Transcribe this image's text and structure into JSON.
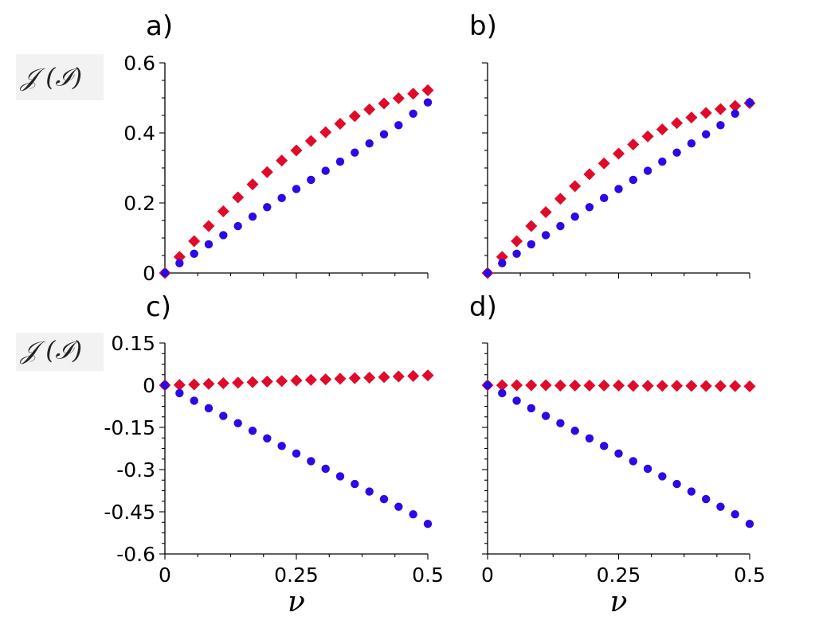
{
  "figure": {
    "x_axis_label": "ν",
    "y_axis_label": "𝒥 (ℐ)"
  },
  "colors": {
    "red_series": "#e00a2a",
    "blue_series": "#2a0ae6"
  },
  "chart_data": [
    {
      "panel": "a)",
      "type": "scatter",
      "xlim": [
        0,
        0.5
      ],
      "ylim": [
        0,
        0.6
      ],
      "xticks": [
        0,
        0.25,
        0.5
      ],
      "xtick_labels": [
        "",
        "",
        ""
      ],
      "yticks": [
        0,
        0.2,
        0.4,
        0.6
      ],
      "ytick_labels": [
        "0",
        "0.2",
        "0.4",
        "0.6"
      ],
      "ylabel": "𝒥 (ℐ)",
      "xlabel": "",
      "series": [
        {
          "name": "diamond",
          "marker": "diamond",
          "color": "#e00a2a",
          "x": [
            0,
            0.0278,
            0.0556,
            0.0833,
            0.1111,
            0.1389,
            0.1667,
            0.1944,
            0.2222,
            0.25,
            0.2778,
            0.3056,
            0.3333,
            0.3611,
            0.3889,
            0.4167,
            0.4444,
            0.4722,
            0.5
          ],
          "y": [
            0,
            0.046,
            0.091,
            0.134,
            0.176,
            0.216,
            0.253,
            0.288,
            0.321,
            0.35,
            0.377,
            0.402,
            0.426,
            0.448,
            0.467,
            0.484,
            0.499,
            0.512,
            0.522
          ]
        },
        {
          "name": "circle",
          "marker": "circle",
          "color": "#2a0ae6",
          "x": [
            0,
            0.0278,
            0.0556,
            0.0833,
            0.1111,
            0.1389,
            0.1667,
            0.1944,
            0.2222,
            0.25,
            0.2778,
            0.3056,
            0.3333,
            0.3611,
            0.3889,
            0.4167,
            0.4444,
            0.4722,
            0.5
          ],
          "y": [
            0,
            0.028,
            0.055,
            0.082,
            0.108,
            0.134,
            0.161,
            0.188,
            0.214,
            0.24,
            0.266,
            0.292,
            0.318,
            0.344,
            0.37,
            0.396,
            0.422,
            0.455,
            0.487
          ]
        }
      ]
    },
    {
      "panel": "b)",
      "type": "scatter",
      "xlim": [
        0,
        0.5
      ],
      "ylim": [
        0,
        0.6
      ],
      "xticks": [
        0,
        0.25,
        0.5
      ],
      "xtick_labels": [
        "",
        "",
        ""
      ],
      "yticks": [
        0,
        0.2,
        0.4,
        0.6
      ],
      "ytick_labels": [
        "",
        "",
        "",
        ""
      ],
      "ylabel": "",
      "xlabel": "",
      "series": [
        {
          "name": "diamond",
          "marker": "diamond",
          "color": "#e00a2a",
          "x": [
            0,
            0.0278,
            0.0556,
            0.0833,
            0.1111,
            0.1389,
            0.1667,
            0.1944,
            0.2222,
            0.25,
            0.2778,
            0.3056,
            0.3333,
            0.3611,
            0.3889,
            0.4167,
            0.4444,
            0.4722,
            0.5
          ],
          "y": [
            0,
            0.046,
            0.091,
            0.134,
            0.174,
            0.212,
            0.248,
            0.282,
            0.313,
            0.341,
            0.367,
            0.39,
            0.41,
            0.428,
            0.444,
            0.457,
            0.468,
            0.477,
            0.485
          ]
        },
        {
          "name": "circle",
          "marker": "circle",
          "color": "#2a0ae6",
          "x": [
            0,
            0.0278,
            0.0556,
            0.0833,
            0.1111,
            0.1389,
            0.1667,
            0.1944,
            0.2222,
            0.25,
            0.2778,
            0.3056,
            0.3333,
            0.3611,
            0.3889,
            0.4167,
            0.4444,
            0.4722,
            0.5
          ],
          "y": [
            0,
            0.028,
            0.055,
            0.082,
            0.108,
            0.134,
            0.161,
            0.188,
            0.214,
            0.24,
            0.266,
            0.292,
            0.318,
            0.344,
            0.37,
            0.396,
            0.422,
            0.455,
            0.487
          ]
        }
      ]
    },
    {
      "panel": "c)",
      "type": "scatter",
      "xlim": [
        0,
        0.5
      ],
      "ylim": [
        -0.6,
        0.15
      ],
      "xticks": [
        0,
        0.25,
        0.5
      ],
      "xtick_labels": [
        "0",
        "0.25",
        "0.5"
      ],
      "yticks": [
        0.15,
        0,
        -0.15,
        -0.3,
        -0.45,
        -0.6
      ],
      "ytick_labels": [
        "0.15",
        "0",
        "-0.15",
        "-0.3",
        "-0.45",
        "-0.6"
      ],
      "ylabel": "𝒥 (ℐ)",
      "xlabel": "ν",
      "series": [
        {
          "name": "diamond",
          "marker": "diamond",
          "color": "#e00a2a",
          "x": [
            0,
            0.0278,
            0.0556,
            0.0833,
            0.1111,
            0.1389,
            0.1667,
            0.1944,
            0.2222,
            0.25,
            0.2778,
            0.3056,
            0.3333,
            0.3611,
            0.3889,
            0.4167,
            0.4444,
            0.4722,
            0.5
          ],
          "y": [
            0,
            0.001,
            0.003,
            0.005,
            0.007,
            0.009,
            0.011,
            0.013,
            0.015,
            0.017,
            0.019,
            0.021,
            0.023,
            0.025,
            0.027,
            0.029,
            0.031,
            0.033,
            0.035
          ]
        },
        {
          "name": "circle",
          "marker": "circle",
          "color": "#2a0ae6",
          "x": [
            0,
            0.0278,
            0.0556,
            0.0833,
            0.1111,
            0.1389,
            0.1667,
            0.1944,
            0.2222,
            0.25,
            0.2778,
            0.3056,
            0.3333,
            0.3611,
            0.3889,
            0.4167,
            0.4444,
            0.4722,
            0.5
          ],
          "y": [
            0,
            -0.028,
            -0.055,
            -0.082,
            -0.109,
            -0.135,
            -0.162,
            -0.189,
            -0.216,
            -0.243,
            -0.27,
            -0.297,
            -0.324,
            -0.351,
            -0.378,
            -0.405,
            -0.432,
            -0.459,
            -0.493
          ]
        }
      ]
    },
    {
      "panel": "d)",
      "type": "scatter",
      "xlim": [
        0,
        0.5
      ],
      "ylim": [
        -0.6,
        0.15
      ],
      "xticks": [
        0,
        0.25,
        0.5
      ],
      "xtick_labels": [
        "0",
        "0.25",
        "0.5"
      ],
      "yticks": [
        0.15,
        0,
        -0.15,
        -0.3,
        -0.45,
        -0.6
      ],
      "ytick_labels": [
        "",
        "",
        "",
        "",
        "",
        ""
      ],
      "ylabel": "",
      "xlabel": "ν",
      "series": [
        {
          "name": "diamond",
          "marker": "diamond",
          "color": "#e00a2a",
          "x": [
            0,
            0.0278,
            0.0556,
            0.0833,
            0.1111,
            0.1389,
            0.1667,
            0.1944,
            0.2222,
            0.25,
            0.2778,
            0.3056,
            0.3333,
            0.3611,
            0.3889,
            0.4167,
            0.4444,
            0.4722,
            0.5
          ],
          "y": [
            0,
            0.0,
            0.0,
            0.0,
            0.0,
            -0.001,
            -0.001,
            -0.001,
            -0.001,
            -0.001,
            -0.002,
            -0.002,
            -0.002,
            -0.002,
            -0.002,
            -0.003,
            -0.003,
            -0.003,
            -0.004
          ]
        },
        {
          "name": "circle",
          "marker": "circle",
          "color": "#2a0ae6",
          "x": [
            0,
            0.0278,
            0.0556,
            0.0833,
            0.1111,
            0.1389,
            0.1667,
            0.1944,
            0.2222,
            0.25,
            0.2778,
            0.3056,
            0.3333,
            0.3611,
            0.3889,
            0.4167,
            0.4444,
            0.4722,
            0.5
          ],
          "y": [
            0,
            -0.028,
            -0.055,
            -0.082,
            -0.109,
            -0.135,
            -0.162,
            -0.189,
            -0.216,
            -0.243,
            -0.27,
            -0.297,
            -0.324,
            -0.351,
            -0.378,
            -0.405,
            -0.432,
            -0.459,
            -0.493
          ]
        }
      ]
    }
  ]
}
